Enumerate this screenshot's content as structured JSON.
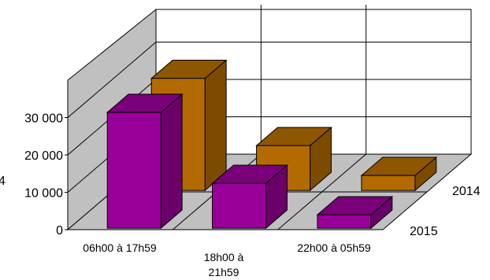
{
  "chart_data": {
    "type": "bar",
    "subtype": "3d-clustered-depth",
    "categories": [
      "06h00 à 17h59",
      "18h00 à 21h59",
      "22h00 à 05h59"
    ],
    "series": [
      {
        "name": "2015",
        "values": [
          31000,
          12000,
          3600
        ],
        "color": "#990099"
      },
      {
        "name": "2014",
        "values": [
          30000,
          12000,
          4000
        ],
        "color": "#b36b00"
      }
    ],
    "y_ticks": [
      "0",
      "10 000",
      "20 000",
      "30 000"
    ],
    "ylim": [
      0,
      40000
    ],
    "grid": true,
    "cut_off_left_label": "4"
  }
}
